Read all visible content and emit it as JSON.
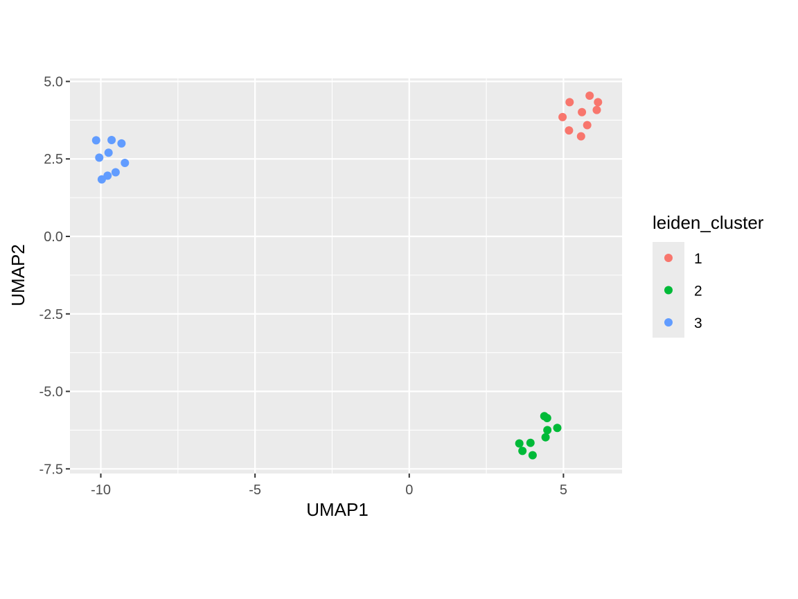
{
  "chart_data": {
    "type": "scatter",
    "xlabel": "UMAP1",
    "ylabel": "UMAP2",
    "xlim": [
      -11,
      6.9
    ],
    "ylim": [
      -7.65,
      5.1
    ],
    "xticks": [
      -10,
      -5,
      0,
      5
    ],
    "xtick_labels": [
      "-10",
      "-5",
      "0",
      "5"
    ],
    "yticks": [
      5.0,
      2.5,
      0.0,
      -2.5,
      -5.0,
      -7.5
    ],
    "ytick_labels": [
      "5.0",
      "2.5",
      "0.0",
      "-2.5",
      "-5.0",
      "-7.5"
    ],
    "grid": true,
    "legend_title": "leiden_cluster",
    "legend_position": "right",
    "series": [
      {
        "name": "1",
        "color": "#F8766D",
        "points": [
          [
            5.85,
            4.54
          ],
          [
            6.12,
            4.33
          ],
          [
            5.2,
            4.33
          ],
          [
            6.08,
            4.08
          ],
          [
            5.6,
            4.01
          ],
          [
            4.97,
            3.85
          ],
          [
            5.77,
            3.59
          ],
          [
            5.18,
            3.42
          ],
          [
            5.57,
            3.23
          ]
        ]
      },
      {
        "name": "2",
        "color": "#00BA38",
        "points": [
          [
            4.38,
            -5.8
          ],
          [
            4.47,
            -5.86
          ],
          [
            4.8,
            -6.18
          ],
          [
            4.48,
            -6.25
          ],
          [
            4.42,
            -6.48
          ],
          [
            3.57,
            -6.68
          ],
          [
            3.93,
            -6.66
          ],
          [
            3.67,
            -6.92
          ],
          [
            4.0,
            -7.06
          ]
        ]
      },
      {
        "name": "3",
        "color": "#619CFF",
        "points": [
          [
            -10.15,
            3.1
          ],
          [
            -9.65,
            3.11
          ],
          [
            -9.33,
            3.0
          ],
          [
            -9.75,
            2.7
          ],
          [
            -10.05,
            2.54
          ],
          [
            -9.22,
            2.37
          ],
          [
            -9.52,
            2.07
          ],
          [
            -9.78,
            1.96
          ],
          [
            -9.97,
            1.84
          ]
        ]
      }
    ]
  }
}
